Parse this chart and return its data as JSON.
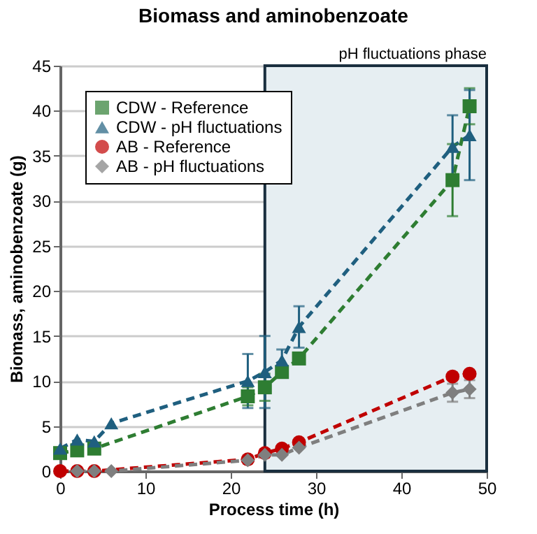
{
  "chart_data": {
    "type": "line",
    "title": "Biomass and aminobenzoate",
    "xlabel": "Process time (h)",
    "ylabel": "Biomass, aminobenzoate (g)",
    "xlim": [
      0,
      50
    ],
    "xticks": [
      0,
      10,
      20,
      30,
      40,
      50
    ],
    "ylim": [
      0,
      45
    ],
    "yticks": [
      0,
      5,
      10,
      15,
      20,
      25,
      30,
      35,
      40,
      45
    ],
    "grid": "y",
    "legend": "top left",
    "line_style": "dashed",
    "bands": [
      {
        "axis": "x",
        "from": 24,
        "to": 50,
        "label": "pH fluctuations phase",
        "color": "#e6eef2"
      }
    ],
    "series": [
      {
        "name": "CDW - Reference",
        "color": "#2e7d32",
        "marker": "square",
        "x": [
          0,
          2,
          4,
          22,
          24,
          26,
          28,
          46,
          48
        ],
        "values": [
          2,
          2.3,
          2.5,
          8.3,
          9.3,
          11,
          12.5,
          32.3,
          40.5
        ],
        "errors": [
          null,
          null,
          null,
          1,
          1.5,
          null,
          null,
          4,
          2
        ]
      },
      {
        "name": "CDW - pH fluctuations",
        "color": "#1f5f7f",
        "marker": "triangle",
        "x": [
          0,
          2,
          4,
          6,
          22,
          24,
          26,
          28,
          46,
          48
        ],
        "values": [
          2.5,
          3.5,
          3.3,
          5.3,
          10,
          11,
          12.3,
          16,
          36,
          37.3
        ],
        "errors": [
          null,
          null,
          null,
          null,
          3,
          4,
          1.2,
          2.3,
          3.5,
          5
        ]
      },
      {
        "name": "AB - Reference",
        "color": "#c00000",
        "marker": "circle",
        "x": [
          0,
          2,
          4,
          22,
          24,
          26,
          28,
          46,
          48
        ],
        "values": [
          0,
          0,
          0,
          1.3,
          2,
          2.5,
          3.2,
          10.5,
          10.8
        ],
        "errors": [
          null,
          null,
          null,
          null,
          null,
          null,
          null,
          null,
          null
        ]
      },
      {
        "name": "AB - pH fluctuations",
        "color": "#7f7f7f",
        "marker": "diamond",
        "x": [
          2,
          4,
          6,
          22,
          24,
          26,
          28,
          46,
          48
        ],
        "values": [
          0,
          0,
          0,
          1.2,
          1.8,
          1.8,
          2.6,
          8.7,
          9.1
        ],
        "errors": [
          null,
          null,
          null,
          null,
          null,
          null,
          null,
          1,
          1
        ]
      }
    ]
  }
}
